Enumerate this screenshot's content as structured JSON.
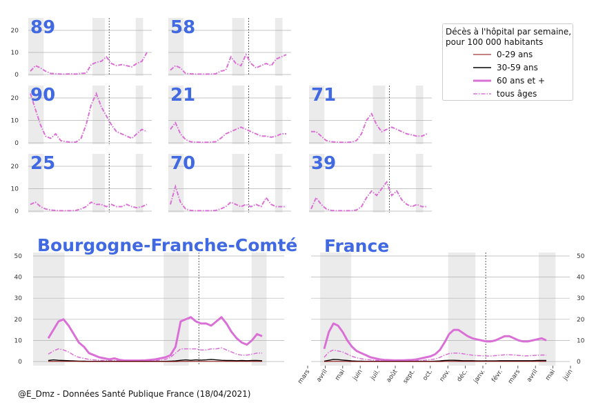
{
  "chart_data": [
    {
      "type": "line",
      "label": "89",
      "ylim": [
        0,
        25
      ],
      "yticks": [
        "0",
        "10",
        "20"
      ],
      "series": [
        {
          "name": "tous âges",
          "values": [
            1.5,
            4,
            3,
            1.5,
            0.5,
            0.3,
            0.2,
            0.2,
            0.3,
            0.2,
            0.5,
            0.6,
            4.5,
            5.5,
            6,
            8,
            5,
            4,
            4.5,
            4,
            3.5,
            5,
            6,
            10
          ]
        }
      ]
    },
    {
      "type": "line",
      "label": "58",
      "ylim": [
        0,
        25
      ],
      "yticks": [
        "0",
        "10",
        "20"
      ],
      "series": [
        {
          "name": "tous âges",
          "values": [
            2,
            4,
            3,
            0.5,
            0.3,
            0.2,
            0.2,
            0.2,
            0.2,
            0.3,
            1.5,
            2,
            8,
            5,
            4,
            9,
            5,
            3,
            4,
            5,
            4,
            7,
            8,
            9
          ]
        }
      ]
    },
    {
      "type": "line",
      "label": "90",
      "ylim": [
        0,
        25
      ],
      "yticks": [
        "0",
        "10",
        "20"
      ],
      "series": [
        {
          "name": "tous âges",
          "values": [
            22,
            15,
            8,
            3,
            2,
            4,
            1,
            0.5,
            0.3,
            0.3,
            2,
            8,
            17,
            22,
            16,
            12,
            8,
            5,
            4,
            3,
            2,
            4,
            6,
            5
          ]
        }
      ]
    },
    {
      "type": "line",
      "label": "21",
      "ylim": [
        0,
        25
      ],
      "yticks": [
        "0",
        "10",
        "20"
      ],
      "series": [
        {
          "name": "tous âges",
          "values": [
            6,
            9,
            4,
            1.5,
            0.5,
            0.3,
            0.2,
            0.2,
            0.3,
            0.5,
            2,
            4,
            5,
            6,
            7,
            6,
            5,
            4,
            3,
            3,
            2.5,
            3,
            4,
            4
          ]
        }
      ]
    },
    {
      "type": "line",
      "label": "71",
      "ylim": [
        0,
        25
      ],
      "yticks": [
        "0",
        "10",
        "20"
      ],
      "series": [
        {
          "name": "tous âges",
          "values": [
            5,
            5,
            3,
            1,
            0.5,
            0.3,
            0.2,
            0.2,
            0.3,
            1,
            4,
            10,
            13,
            8,
            5,
            6,
            7,
            6,
            5,
            4,
            3.5,
            3,
            3,
            4
          ]
        }
      ]
    },
    {
      "type": "line",
      "label": "25",
      "ylim": [
        0,
        25
      ],
      "yticks": [
        "0",
        "10",
        "20"
      ],
      "series": [
        {
          "name": "tous âges",
          "values": [
            3,
            4,
            2,
            1,
            0.5,
            0.3,
            0.2,
            0.2,
            0.2,
            0.3,
            1,
            2,
            4,
            3,
            3,
            2,
            3,
            2,
            2,
            3,
            2,
            1.5,
            2,
            3
          ]
        }
      ]
    },
    {
      "type": "line",
      "label": "70",
      "ylim": [
        0,
        25
      ],
      "yticks": [
        "0",
        "10",
        "20"
      ],
      "series": [
        {
          "name": "tous âges",
          "values": [
            3,
            11,
            4,
            1,
            0.3,
            0.2,
            0.2,
            0.2,
            0.2,
            0.3,
            1,
            2,
            4,
            3,
            2,
            3,
            2,
            3,
            2,
            6,
            3,
            2,
            2,
            2
          ]
        }
      ]
    },
    {
      "type": "line",
      "label": "39",
      "ylim": [
        0,
        25
      ],
      "yticks": [
        "0",
        "10",
        "20"
      ],
      "series": [
        {
          "name": "tous âges",
          "values": [
            1,
            6,
            3,
            1,
            0.3,
            0.2,
            0.2,
            0.2,
            0.2,
            0.5,
            2,
            6,
            9,
            7,
            10,
            13,
            7,
            9,
            5,
            3,
            2,
            3,
            2,
            2
          ]
        }
      ]
    },
    {
      "type": "line",
      "label": "Bourgogne-Franche-Comté",
      "ylim": [
        -2,
        50
      ],
      "yticks": [
        "0",
        "10",
        "20",
        "30",
        "40",
        "50"
      ],
      "series": [
        {
          "name": "60 ans et +",
          "values": [
            11,
            15,
            19,
            20,
            17,
            13,
            9,
            7,
            4,
            3,
            2,
            1.5,
            1,
            1.5,
            0.8,
            0.5,
            0.5,
            0.5,
            0.5,
            0.6,
            0.8,
            1,
            1.5,
            2,
            3,
            7,
            19,
            20,
            21,
            19,
            18,
            18,
            17,
            19,
            21,
            18,
            14,
            11,
            9,
            8,
            10,
            13,
            12
          ]
        },
        {
          "name": "tous âges",
          "values": [
            3.5,
            5,
            6,
            5.5,
            4.5,
            3,
            2,
            1.5,
            1,
            0.8,
            0.6,
            0.5,
            0.4,
            0.5,
            0.3,
            0.2,
            0.2,
            0.2,
            0.2,
            0.3,
            0.4,
            0.5,
            0.7,
            1,
            2,
            4,
            6,
            6,
            6,
            6,
            5.5,
            5.5,
            6,
            6,
            6.5,
            5.5,
            4.5,
            3.5,
            3,
            3,
            3.5,
            4,
            4
          ]
        },
        {
          "name": "30-59 ans",
          "values": [
            0.5,
            0.8,
            0.6,
            0.5,
            0.4,
            0.3,
            0.2,
            0.2,
            0.1,
            0.1,
            0.1,
            0.1,
            0.1,
            0.1,
            0.1,
            0.1,
            0.1,
            0.1,
            0.1,
            0.1,
            0.1,
            0.1,
            0.1,
            0.1,
            0.2,
            0.3,
            0.6,
            0.8,
            0.6,
            0.8,
            0.7,
            0.8,
            1,
            0.8,
            0.6,
            0.5,
            0.5,
            0.4,
            0.5,
            0.4,
            0.5,
            0.5,
            0.4
          ]
        },
        {
          "name": "0-29 ans",
          "values": [
            0.1,
            0.1,
            0.1,
            0.1,
            0.1,
            0.1,
            0.1,
            0,
            0,
            0,
            0,
            0,
            0,
            0,
            0,
            0,
            0,
            0,
            0,
            0,
            0,
            0,
            0,
            0,
            0,
            0,
            0.1,
            0.1,
            0.1,
            0.1,
            0.1,
            0.1,
            0.1,
            0.1,
            0.1,
            0.1,
            0.1,
            0.1,
            0.1,
            0.1,
            0.1,
            0.1,
            0.1
          ]
        }
      ]
    },
    {
      "type": "line",
      "label": "France",
      "ylim": [
        -2,
        50
      ],
      "yticks": [
        "0",
        "10",
        "20",
        "30",
        "40",
        "50"
      ],
      "xticks": [
        "mars",
        "avril",
        "mai",
        "juin",
        "juil.",
        "août",
        "sept.",
        "oct.",
        "nov.",
        "déc.",
        "janv.",
        "févr.",
        "mars",
        "avril",
        "mai",
        "juin"
      ],
      "series": [
        {
          "name": "60 ans et +",
          "values": [
            6,
            14,
            18,
            17,
            14,
            10,
            7,
            5,
            4,
            3,
            2,
            1.5,
            1,
            0.8,
            0.7,
            0.6,
            0.6,
            0.6,
            0.7,
            0.8,
            1,
            1.5,
            2,
            2.5,
            3.5,
            5.5,
            9,
            13,
            15,
            15,
            13.5,
            12,
            11,
            10.5,
            10,
            9.5,
            9.5,
            10,
            11,
            12,
            12,
            11,
            10,
            9.5,
            9.5,
            10,
            10.5,
            11,
            10
          ]
        },
        {
          "name": "tous âges",
          "values": [
            2,
            4.5,
            5.5,
            5,
            4.5,
            3.5,
            2.5,
            1.8,
            1.3,
            1,
            0.8,
            0.6,
            0.4,
            0.3,
            0.3,
            0.3,
            0.3,
            0.3,
            0.3,
            0.3,
            0.4,
            0.5,
            0.7,
            0.9,
            1.2,
            2,
            3,
            3.8,
            4,
            4,
            3.7,
            3.3,
            3,
            2.8,
            2.7,
            2.6,
            2.6,
            2.8,
            3,
            3.2,
            3.2,
            3.1,
            2.9,
            2.7,
            2.7,
            2.8,
            3,
            3.1,
            3
          ]
        },
        {
          "name": "30-59 ans",
          "values": [
            0.2,
            0.6,
            1,
            0.9,
            0.7,
            0.5,
            0.3,
            0.2,
            0.2,
            0.1,
            0.1,
            0.1,
            0.1,
            0.1,
            0.1,
            0.1,
            0.1,
            0.1,
            0.1,
            0.1,
            0.1,
            0.1,
            0.1,
            0.1,
            0.2,
            0.3,
            0.5,
            0.6,
            0.6,
            0.5,
            0.4,
            0.4,
            0.4,
            0.3,
            0.3,
            0.3,
            0.3,
            0.3,
            0.4,
            0.4,
            0.4,
            0.4,
            0.4,
            0.4,
            0.4,
            0.4,
            0.5,
            0.5,
            0.5
          ]
        },
        {
          "name": "0-29 ans",
          "values": [
            0,
            0.1,
            0.1,
            0.1,
            0.1,
            0.1,
            0,
            0,
            0,
            0,
            0,
            0,
            0,
            0,
            0,
            0,
            0,
            0,
            0,
            0,
            0,
            0,
            0,
            0,
            0,
            0,
            0.1,
            0.1,
            0.1,
            0.1,
            0.1,
            0.1,
            0.1,
            0.1,
            0.1,
            0.1,
            0.1,
            0.1,
            0.1,
            0.1,
            0.1,
            0.1,
            0.1,
            0.1,
            0.1,
            0.1,
            0.1,
            0.1,
            0.1
          ]
        }
      ]
    }
  ],
  "legend": {
    "title_line1": "Décès à l'hôpital par semaine,",
    "title_line2": "pour 100 000 habitants",
    "items": [
      {
        "label": "0-29 ans",
        "color": "#8b0000",
        "style": "solid"
      },
      {
        "label": "30-59 ans",
        "color": "#000000",
        "style": "solid"
      },
      {
        "label": "60 ans et +",
        "color": "#da70d6",
        "style": "solid"
      },
      {
        "label": "tous âges",
        "color": "#da70d6",
        "style": "dashdot"
      }
    ]
  },
  "colors": {
    "label": "#4169e1",
    "older": "#da70d6",
    "all": "#da70d6",
    "mid": "#000000",
    "young": "#8b0000",
    "shade": "#ebebeb",
    "grid": "#b0b0b0"
  },
  "footer": {
    "credit": "@E_Dmz - Données Santé Publique France (18/04/2021)"
  }
}
